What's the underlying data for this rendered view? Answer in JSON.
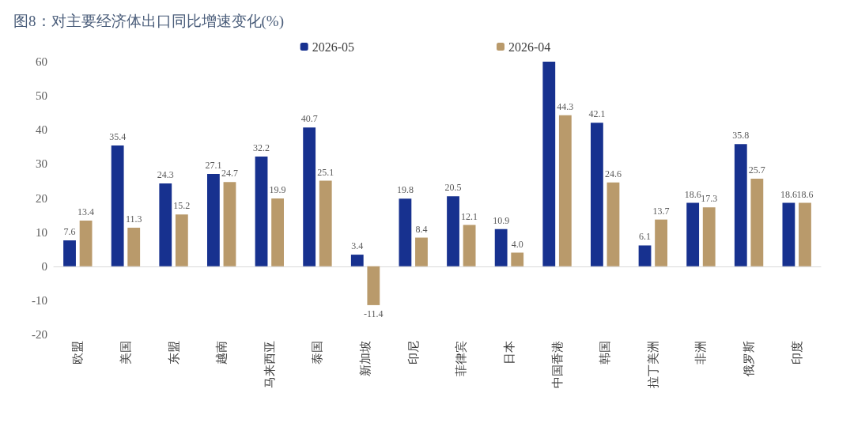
{
  "chart_data": {
    "type": "bar",
    "title": "图8：对主要经济体出口同比增速变化(%)",
    "categories": [
      "欧盟",
      "美国",
      "东盟",
      "越南",
      "马来西亚",
      "泰国",
      "新加坡",
      "印尼",
      "菲律宾",
      "日本",
      "中国香港",
      "韩国",
      "拉丁美洲",
      "非洲",
      "俄罗斯",
      "印度"
    ],
    "series": [
      {
        "name": "2026-05",
        "color": "#17318f",
        "values": [
          7.6,
          35.4,
          24.3,
          27.1,
          32.2,
          40.7,
          3.4,
          19.8,
          20.5,
          10.9,
          60,
          42.1,
          6.1,
          18.6,
          35.8,
          18.6
        ],
        "value_labels": [
          "7.6",
          "35.4",
          "24.3",
          "27.1",
          "32.2",
          "40.7",
          "3.4",
          "19.8",
          "20.5",
          "10.9",
          null,
          "42.1",
          "6.1",
          "18.6",
          "35.8",
          "18.6"
        ]
      },
      {
        "name": "2026-04",
        "color": "#b99a6b",
        "values": [
          13.4,
          11.3,
          15.2,
          24.7,
          19.9,
          25.1,
          -11.4,
          8.4,
          12.1,
          4.0,
          44.3,
          24.6,
          13.7,
          17.3,
          25.7,
          18.6
        ],
        "value_labels": [
          "13.4",
          "11.3",
          "15.2",
          "24.7",
          "19.9",
          "25.1",
          "-11.4",
          "8.4",
          "12.1",
          "4.0",
          "44.3",
          "24.6",
          "13.7",
          "17.3",
          "25.7",
          "18.6"
        ]
      }
    ],
    "ylim": [
      -20,
      60
    ],
    "yticks": [
      -20,
      -10,
      0,
      10,
      20,
      30,
      40,
      50,
      60
    ],
    "legend": "top"
  }
}
